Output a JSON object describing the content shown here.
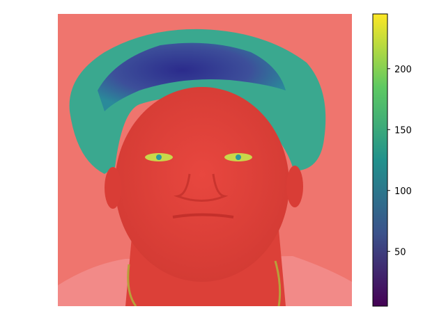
{
  "chart_data": {
    "type": "heatmap",
    "title": "",
    "xlabel": "",
    "ylabel": "",
    "axes_visible": false,
    "image_description_hidden": true,
    "colormap": "viridis",
    "overlay_tint": "#ee6b66",
    "colorbar": {
      "location": "right",
      "range": [
        5,
        245
      ],
      "ticks": [
        50,
        100,
        150,
        200
      ],
      "tick_labels": [
        "50",
        "100",
        "150",
        "200"
      ]
    },
    "regions": [
      {
        "name": "background",
        "value": 245
      },
      {
        "name": "face",
        "value": 240
      },
      {
        "name": "hair-outer",
        "value": 150
      },
      {
        "name": "hair-core",
        "value": 25
      },
      {
        "name": "eyes",
        "value": 155
      }
    ]
  },
  "colors": {
    "viridis_stops": [
      "#440154",
      "#3b528b",
      "#21918c",
      "#5ec962",
      "#fde725"
    ],
    "face_tone": "#e2443c",
    "background_tone": "#ef756e",
    "shirt_tone": "#f28a88"
  }
}
